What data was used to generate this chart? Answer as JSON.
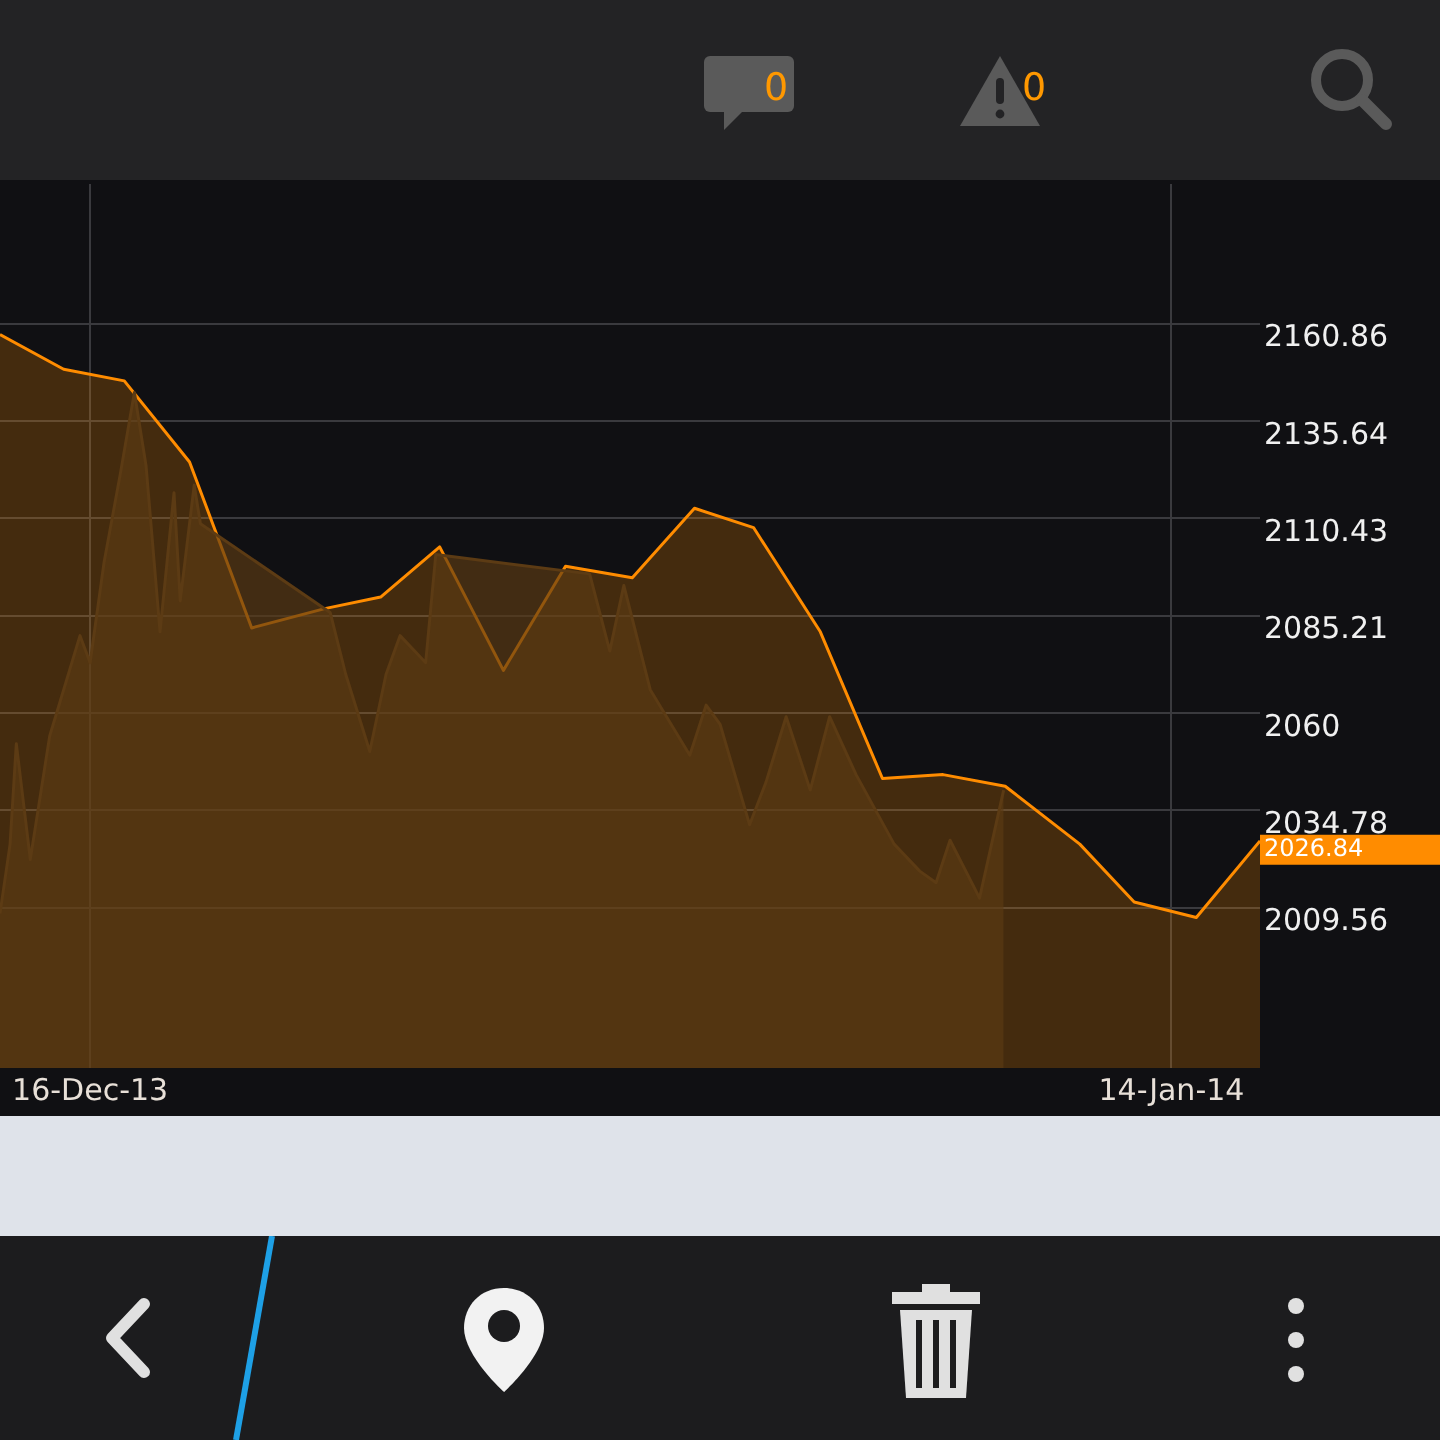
{
  "chart_data": {
    "type": "area",
    "series": [
      {
        "color": "#ff8c00",
        "x": [
          "2013-12-13T14:00",
          "2013-12-15T07:00",
          "2013-12-16T22:00",
          "2013-12-18T16:00",
          "2013-12-20T08:00",
          "2013-12-22T07:00",
          "2013-12-23T19:00",
          "2013-12-25T09:00",
          "2013-12-27T02:00",
          "2013-12-28T18:00",
          "2013-12-30T13:00",
          "2014-01-01T05:00",
          "2014-01-02T19:00",
          "2014-01-04T14:00",
          "2014-01-06T06:00",
          "2014-01-07T21:00",
          "2014-01-09T13:00",
          "2014-01-11T13:00",
          "2014-01-13T00:00",
          "2014-01-14T16:00",
          "2014-01-16T09:00"
        ],
        "values": [
          2158,
          2149,
          2146,
          2125,
          2082,
          2087,
          2090,
          2103,
          2071,
          2098,
          2095,
          2113,
          2108,
          2081,
          2043,
          2044,
          2041,
          2026,
          2011,
          2007,
          2026.84
        ],
        "value_labels": [
          null,
          null,
          null,
          null,
          null,
          null,
          null,
          null,
          null,
          null,
          null,
          null,
          null,
          null,
          null,
          null,
          null,
          null,
          null,
          null,
          "2026.84"
        ]
      },
      {
        "color": "#5c3b14",
        "x": [
          "2013-12-13T14:00",
          "2013-12-13T20:30",
          "2013-12-14T00:30",
          "2013-12-14T09:30",
          "2013-12-14T22:00",
          "2013-12-15T08:30",
          "2013-12-15T17:30",
          "2013-12-16T00:00",
          "2013-12-16T09:00",
          "2013-12-16T19:30",
          "2013-12-17T04:30",
          "2013-12-17T12:00",
          "2013-12-17T21:00",
          "2013-12-18T06:00",
          "2013-12-18T10:00",
          "2013-12-18T19:00",
          "2013-12-18T23:00",
          "2013-12-22T10:30",
          "2013-12-22T20:30",
          "2013-12-23T12:00",
          "2013-12-23T22:30",
          "2013-12-24T07:30",
          "2013-12-25T00:00",
          "2013-12-25T06:30",
          "2013-12-29T09:30",
          "2013-12-29T22:30",
          "2013-12-30T07:30",
          "2013-12-31T00:30",
          "2014-01-01T02:00",
          "2014-01-01T12:30",
          "2014-01-01T21:30",
          "2014-01-02T16:30",
          "2014-01-03T03:00",
          "2014-01-03T16:00",
          "2014-01-04T07:30",
          "2014-01-04T20:00",
          "2014-01-05T13:00",
          "2014-01-06T13:30",
          "2014-01-07T06:00",
          "2014-01-07T16:30",
          "2014-01-08T01:30",
          "2014-01-08T20:30",
          "2014-01-09T12:00"
        ],
        "values": [
          2008,
          2026,
          2052,
          2022,
          2054,
          2068,
          2080,
          2073,
          2099,
          2122,
          2143,
          2124,
          2081,
          2117,
          2089,
          2119,
          2109,
          2086,
          2070,
          2050,
          2070,
          2080,
          2073,
          2101,
          2096,
          2076,
          2093,
          2066,
          2049,
          2062,
          2057,
          2031,
          2042,
          2059,
          2040,
          2059,
          2044,
          2026,
          2019,
          2016,
          2027,
          2012,
          2040
        ]
      }
    ],
    "xlim": [
      "2013-12-13T14:00",
      "2014-01-16T09:00"
    ],
    "xticks": [
      {
        "value": "2013-12-16",
        "label": "16-Dec-13"
      },
      {
        "value": "2014-01-14",
        "label": "14-Jan-14"
      }
    ],
    "ylim": [
      1968,
      2197
    ],
    "yticks": [
      2009.56,
      2034.78,
      2060,
      2085.21,
      2110.43,
      2135.64,
      2160.86
    ],
    "grid": true,
    "legend": false,
    "marker": "none",
    "annotations": [
      "0",
      "0"
    ]
  }
}
